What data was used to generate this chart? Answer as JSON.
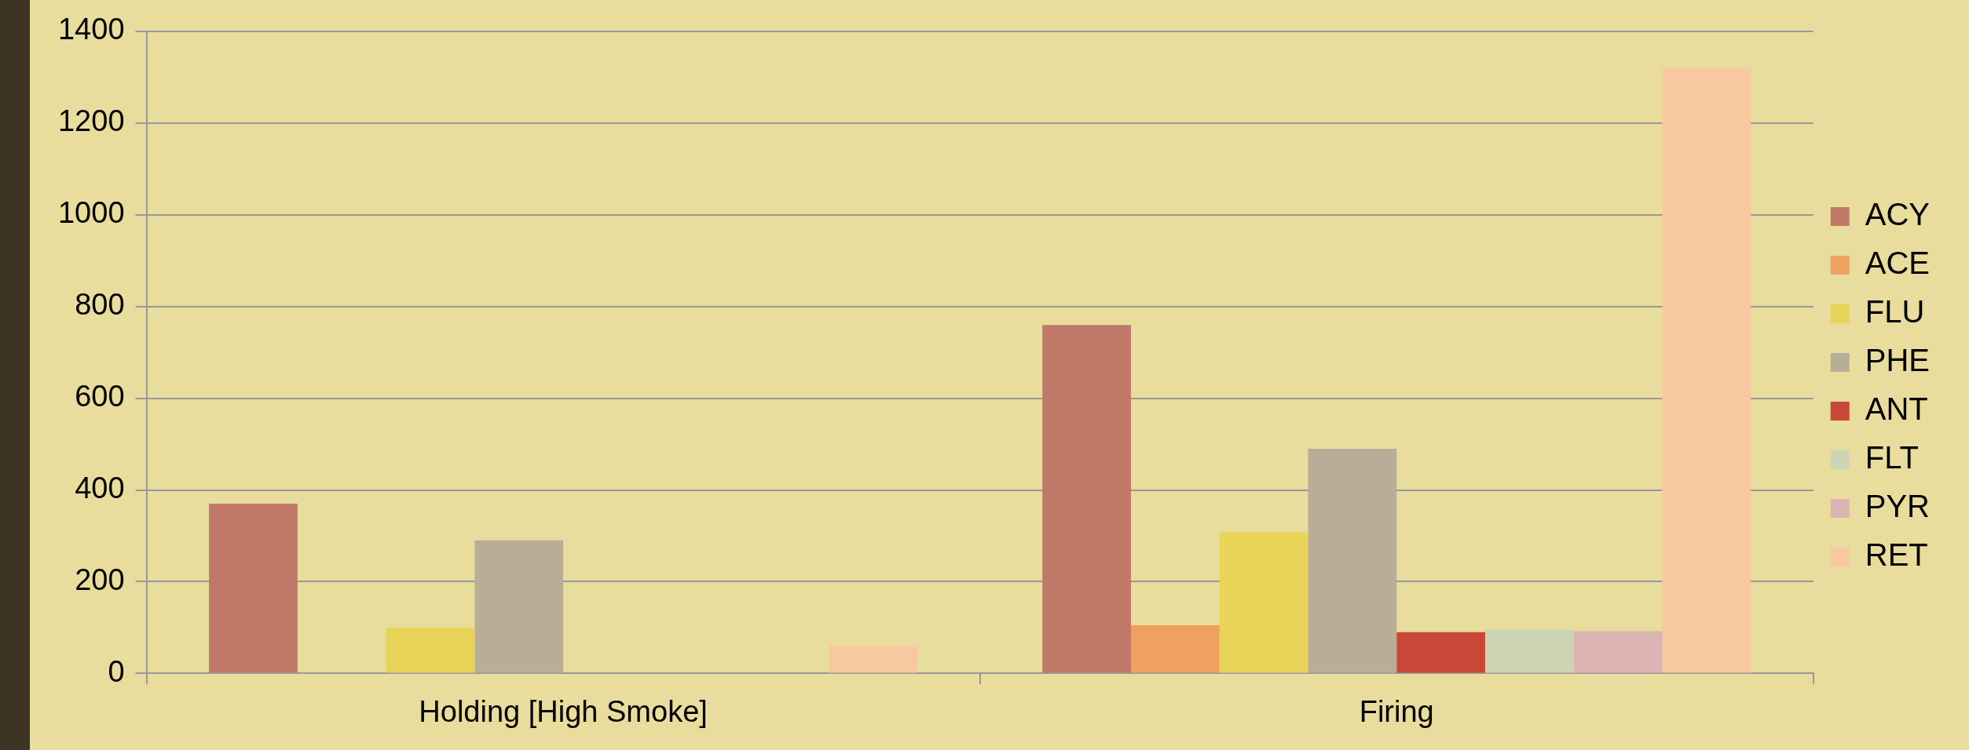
{
  "chart_data": {
    "type": "bar",
    "categories": [
      "Holding [High Smoke]",
      "Firing"
    ],
    "series": [
      {
        "name": "ACY",
        "color": "#c07868",
        "values": [
          370,
          760
        ]
      },
      {
        "name": "ACE",
        "color": "#f0a060",
        "values": [
          0,
          105
        ]
      },
      {
        "name": "FLU",
        "color": "#e8d458",
        "values": [
          100,
          308
        ]
      },
      {
        "name": "PHE",
        "color": "#b8ae98",
        "values": [
          290,
          490
        ]
      },
      {
        "name": "ANT",
        "color": "#c84838",
        "values": [
          0,
          90
        ]
      },
      {
        "name": "FLT",
        "color": "#ccd4b4",
        "values": [
          0,
          95
        ]
      },
      {
        "name": "PYR",
        "color": "#dcb4b4",
        "values": [
          0,
          92
        ]
      },
      {
        "name": "RET",
        "color": "#f8c8a0",
        "values": [
          60,
          1320
        ]
      }
    ],
    "ylim": [
      0,
      1400
    ],
    "yticks": [
      0,
      200,
      400,
      600,
      800,
      1000,
      1200,
      1400
    ],
    "grid": "y",
    "legend": "right"
  }
}
